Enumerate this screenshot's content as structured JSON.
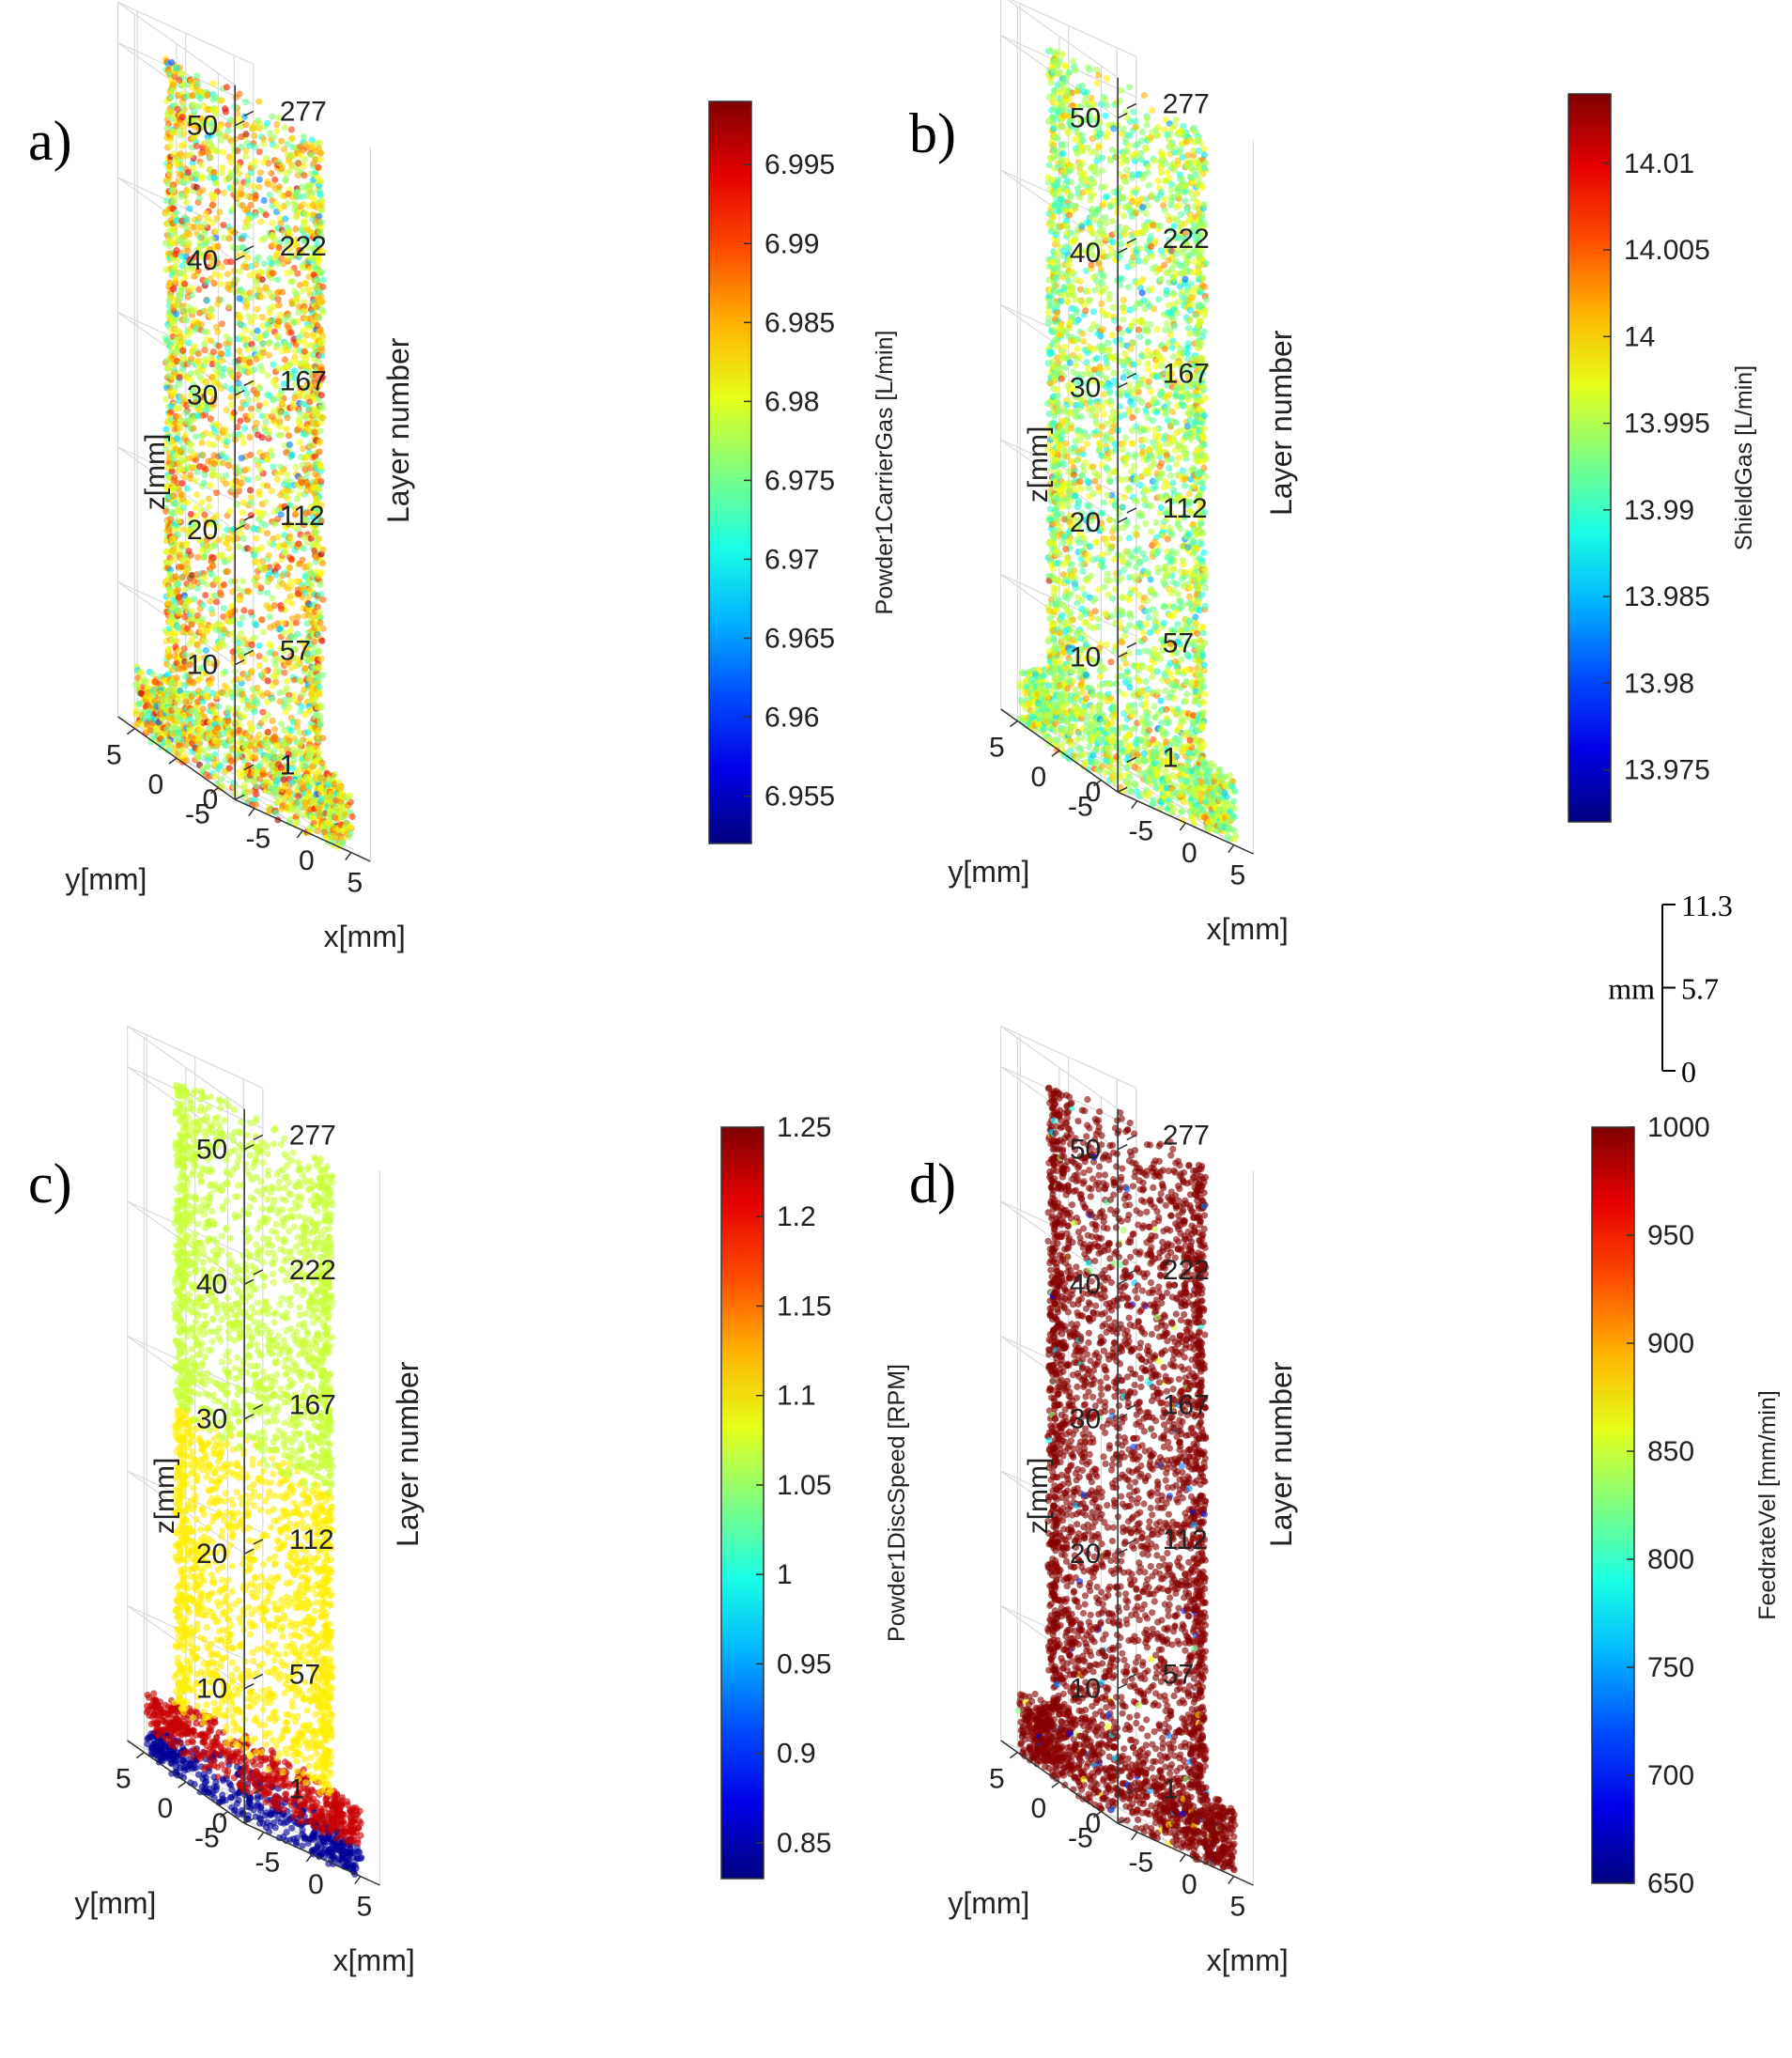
{
  "figure": {
    "scale_bar": {
      "unit": "mm",
      "ticks": [
        "11.3",
        "5.7",
        "0"
      ]
    }
  },
  "chart_data": [
    {
      "type": "scatter",
      "panel_label": "a)",
      "title": "",
      "xlabel": "x[mm]",
      "ylabel": "y[mm]",
      "zlabel": "z[mm]",
      "layer_axis_label": "Layer number",
      "z_ticks": [
        "0",
        "10",
        "20",
        "30",
        "40",
        "50"
      ],
      "layer_ticks": [
        "1",
        "57",
        "112",
        "167",
        "222",
        "277"
      ],
      "x_ticks": [
        "-5",
        "0",
        "5"
      ],
      "y_ticks": [
        "5",
        "0",
        "-5"
      ],
      "zlim": [
        0,
        50
      ],
      "xlim": [
        -7,
        7
      ],
      "ylim": [
        -7,
        7
      ],
      "grid": true,
      "colorbar": {
        "label": "Powder1CarrierGas [L/min]",
        "ticks": [
          "6.995",
          "6.99",
          "6.985",
          "6.98",
          "6.975",
          "6.97",
          "6.965",
          "6.96",
          "6.955"
        ],
        "range": [
          6.952,
          6.999
        ],
        "colormap": "jet"
      },
      "distribution": {
        "body_mean": 6.981,
        "body_spread": 0.006,
        "base_mean": 6.981,
        "base_spread": 0.006
      },
      "base_z_top": 4.5,
      "body_radius_mm": 6.2,
      "base_radius_mm": 8.5
    },
    {
      "type": "scatter",
      "panel_label": "b)",
      "title": "",
      "xlabel": "x[mm]",
      "ylabel": "y[mm]",
      "zlabel": "z[mm]",
      "layer_axis_label": "Layer number",
      "z_ticks": [
        "0",
        "10",
        "20",
        "30",
        "40",
        "50"
      ],
      "layer_ticks": [
        "1",
        "57",
        "112",
        "167",
        "222",
        "277"
      ],
      "x_ticks": [
        "-5",
        "0",
        "5"
      ],
      "y_ticks": [
        "5",
        "0",
        "-5"
      ],
      "zlim": [
        0,
        50
      ],
      "xlim": [
        -7,
        7
      ],
      "ylim": [
        -7,
        7
      ],
      "grid": true,
      "colorbar": {
        "label": "ShieldGas [L/min]",
        "ticks": [
          "14.01",
          "14.005",
          "14",
          "13.995",
          "13.99",
          "13.985",
          "13.98",
          "13.975"
        ],
        "range": [
          13.972,
          14.014
        ],
        "colormap": "jet"
      },
      "distribution": {
        "body_mean": 13.995,
        "body_spread": 0.004,
        "base_mean": 13.995,
        "base_spread": 0.004
      },
      "base_z_top": 4.5,
      "body_radius_mm": 6.2,
      "base_radius_mm": 8.5
    },
    {
      "type": "scatter",
      "panel_label": "c)",
      "title": "",
      "xlabel": "x[mm]",
      "ylabel": "y[mm]",
      "zlabel": "z[mm]",
      "layer_axis_label": "Layer number",
      "z_ticks": [
        "0",
        "10",
        "20",
        "30",
        "40",
        "50"
      ],
      "layer_ticks": [
        "1",
        "57",
        "112",
        "167",
        "222",
        "277"
      ],
      "x_ticks": [
        "-5",
        "0",
        "5"
      ],
      "y_ticks": [
        "5",
        "0",
        "-5"
      ],
      "zlim": [
        0,
        50
      ],
      "xlim": [
        -7,
        7
      ],
      "ylim": [
        -7,
        7
      ],
      "grid": true,
      "colorbar": {
        "label": "Powder1DiscSpeed [RPM]",
        "ticks": [
          "1.25",
          "1.2",
          "1.15",
          "1.1",
          "1.05",
          "1",
          "0.95",
          "0.9",
          "0.85"
        ],
        "range": [
          0.83,
          1.25
        ],
        "colormap": "jet"
      },
      "segments": [
        {
          "z_from": 0,
          "z_to": 2,
          "value": 0.84
        },
        {
          "z_from": 2,
          "z_to": 4.5,
          "value": 1.22
        },
        {
          "z_from": 4.5,
          "z_to": 27,
          "value": 1.1
        },
        {
          "z_from": 27,
          "z_to": 55,
          "value": 1.07
        }
      ],
      "base_z_top": 4.5,
      "body_radius_mm": 6.2,
      "base_radius_mm": 8.5
    },
    {
      "type": "scatter",
      "panel_label": "d)",
      "title": "",
      "xlabel": "x[mm]",
      "ylabel": "y[mm]",
      "zlabel": "z[mm]",
      "layer_axis_label": "Layer number",
      "z_ticks": [
        "0",
        "10",
        "20",
        "30",
        "40",
        "50"
      ],
      "layer_ticks": [
        "1",
        "57",
        "112",
        "167",
        "222",
        "277"
      ],
      "x_ticks": [
        "-5",
        "0",
        "5"
      ],
      "y_ticks": [
        "5",
        "0",
        "-5"
      ],
      "zlim": [
        0,
        50
      ],
      "xlim": [
        -7,
        7
      ],
      "ylim": [
        -7,
        7
      ],
      "grid": true,
      "colorbar": {
        "label": "FeedrateVel [mm/min]",
        "ticks": [
          "1000",
          "950",
          "900",
          "850",
          "800",
          "750",
          "700",
          "650"
        ],
        "range": [
          650,
          1000
        ],
        "colormap": "jet"
      },
      "distribution": {
        "dominant_value": 995,
        "outlier_fraction": 0.03,
        "outlier_range": [
          680,
          900
        ]
      },
      "base_z_top": 4.5,
      "body_radius_mm": 6.2,
      "base_radius_mm": 8.5
    }
  ]
}
